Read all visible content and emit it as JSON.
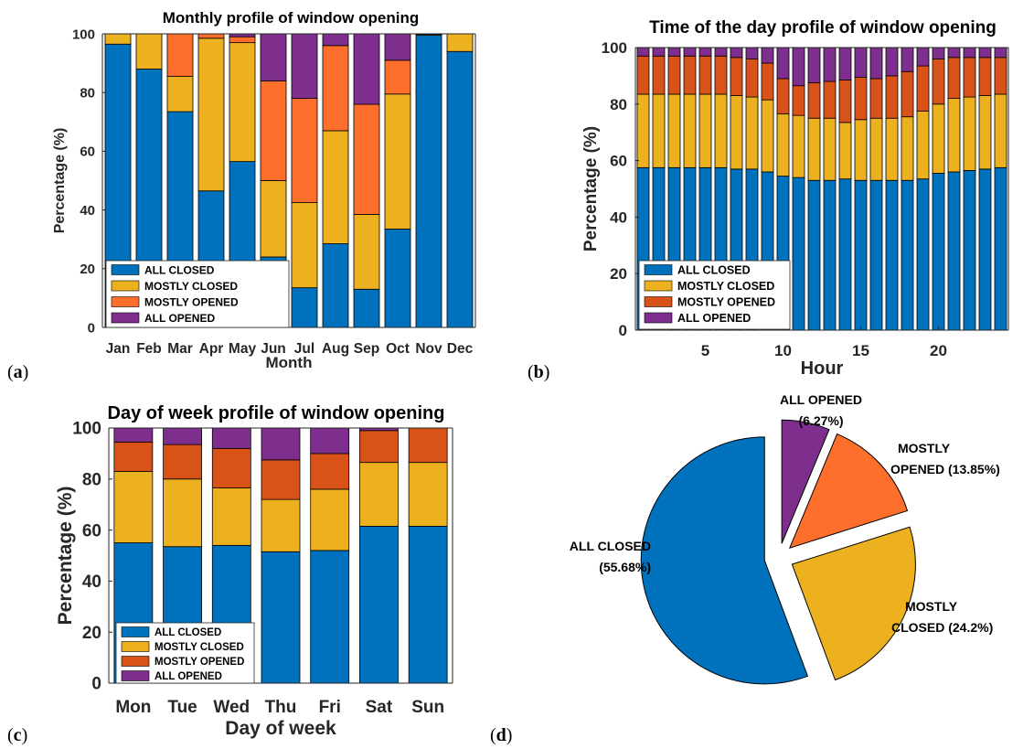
{
  "colors": {
    "all_closed": "#0072BD",
    "mostly_closed": "#EDB120",
    "mostly_opened_a": "#FF6F2C",
    "mostly_opened_bc": "#D95319",
    "all_opened": "#7E2F8E"
  },
  "panels": {
    "a": "a",
    "b": "b",
    "c": "c",
    "d": "d"
  },
  "legend": [
    "ALL CLOSED",
    "MOSTLY CLOSED",
    "MOSTLY OPENED",
    "ALL OPENED"
  ],
  "chart_data": [
    {
      "id": "a",
      "type": "bar",
      "stacked": true,
      "title": "Monthly profile of window opening",
      "xlabel": "Month",
      "ylabel": "Percentage (%)",
      "ylim": [
        0,
        100
      ],
      "yticks": [
        0,
        20,
        40,
        60,
        80,
        100
      ],
      "legend_position": "bottom-left",
      "categories": [
        "Jan",
        "Feb",
        "Mar",
        "Apr",
        "May",
        "Jun",
        "Jul",
        "Aug",
        "Sep",
        "Oct",
        "Nov",
        "Dec"
      ],
      "series": [
        {
          "name": "ALL CLOSED",
          "values": [
            96.5,
            88,
            73.5,
            46.5,
            56.5,
            24,
            13.5,
            28.5,
            13,
            33.5,
            99.5,
            94
          ]
        },
        {
          "name": "MOSTLY CLOSED",
          "values": [
            3.5,
            12,
            12,
            52,
            40.5,
            26,
            29,
            38.5,
            25.5,
            46,
            0.3,
            6
          ]
        },
        {
          "name": "MOSTLY OPENED",
          "values": [
            0,
            0,
            14.5,
            1.5,
            2,
            34,
            35.5,
            29,
            37.5,
            11.5,
            0.1,
            0
          ]
        },
        {
          "name": "ALL OPENED",
          "values": [
            0,
            0,
            0,
            0,
            1,
            16,
            22,
            4,
            24,
            9,
            0.1,
            0
          ]
        }
      ]
    },
    {
      "id": "b",
      "type": "bar",
      "stacked": true,
      "title": "Time of the day profile of window opening",
      "xlabel": "Hour",
      "ylabel": "Percentage (%)",
      "ylim": [
        0,
        100
      ],
      "yticks": [
        0,
        20,
        40,
        60,
        80,
        100
      ],
      "xticks": [
        5,
        10,
        15,
        20
      ],
      "legend_position": "bottom-left",
      "categories": [
        1,
        2,
        3,
        4,
        5,
        6,
        7,
        8,
        9,
        10,
        11,
        12,
        13,
        14,
        15,
        16,
        17,
        18,
        19,
        20,
        21,
        22,
        23,
        24
      ],
      "series": [
        {
          "name": "ALL CLOSED",
          "values": [
            57.5,
            57.5,
            57.5,
            57.5,
            57.5,
            57.5,
            57,
            57,
            56,
            54.5,
            54,
            53,
            53,
            53.5,
            53,
            53,
            53,
            53,
            53.5,
            55.5,
            56,
            56.5,
            57,
            57.5
          ]
        },
        {
          "name": "MOSTLY CLOSED",
          "values": [
            26,
            26,
            26,
            26,
            26,
            26,
            26,
            25.5,
            25.5,
            22,
            22,
            22,
            22,
            20,
            21.5,
            22,
            22,
            22.5,
            24,
            24.5,
            26,
            26,
            26,
            26
          ]
        },
        {
          "name": "MOSTLY OPENED",
          "values": [
            13.5,
            13.5,
            13.5,
            13.5,
            13.5,
            13.5,
            13.5,
            13.5,
            13,
            12.5,
            10.5,
            12.5,
            13,
            15,
            15,
            14,
            15,
            16,
            16,
            16,
            14.5,
            14,
            13.5,
            13
          ]
        },
        {
          "name": "ALL OPENED",
          "values": [
            3,
            3,
            3,
            3,
            3,
            3,
            3.5,
            4,
            5.5,
            11,
            13.5,
            12.5,
            12,
            11.5,
            10.5,
            11,
            10,
            8.5,
            6.5,
            4,
            3.5,
            3.5,
            3.5,
            3.5
          ]
        }
      ]
    },
    {
      "id": "c",
      "type": "bar",
      "stacked": true,
      "title": "Day of week profile of window opening",
      "xlabel": "Day of week",
      "ylabel": "Percentage (%)",
      "ylim": [
        0,
        100
      ],
      "yticks": [
        0,
        20,
        40,
        60,
        80,
        100
      ],
      "legend_position": "bottom-left",
      "categories": [
        "Mon",
        "Tue",
        "Wed",
        "Thu",
        "Fri",
        "Sat",
        "Sun"
      ],
      "series": [
        {
          "name": "ALL CLOSED",
          "values": [
            55,
            53.5,
            54,
            51.5,
            52,
            61.5,
            61.5
          ]
        },
        {
          "name": "MOSTLY CLOSED",
          "values": [
            28,
            26.5,
            22.5,
            20.5,
            24,
            25,
            25
          ]
        },
        {
          "name": "MOSTLY OPENED",
          "values": [
            11.5,
            13.5,
            15.5,
            15.5,
            14,
            12.5,
            13.5
          ]
        },
        {
          "name": "ALL OPENED",
          "values": [
            5.5,
            6.5,
            8,
            12.5,
            10,
            1,
            0
          ]
        }
      ]
    },
    {
      "id": "d",
      "type": "pie",
      "exploded": true,
      "slices": [
        {
          "name": "ALL OPENED",
          "value": 6.27,
          "label": "(6.27%)"
        },
        {
          "name": "MOSTLY OPENED",
          "value": 13.85,
          "label": "OPENED (13.85%)",
          "label_line1": "MOSTLY"
        },
        {
          "name": "MOSTLY CLOSED",
          "value": 24.2,
          "label": "CLOSED (24.2%)",
          "label_line1": "MOSTLY"
        },
        {
          "name": "ALL CLOSED",
          "value": 55.68,
          "label": "(55.68%)"
        }
      ]
    }
  ]
}
